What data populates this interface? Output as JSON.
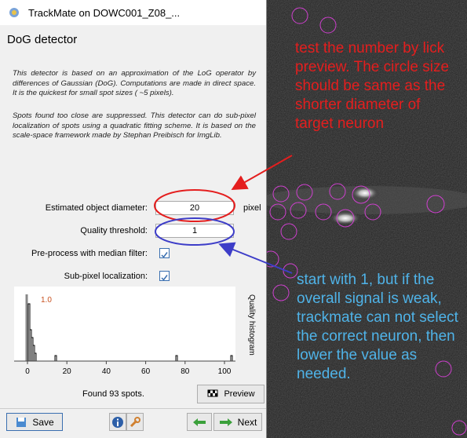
{
  "window": {
    "title": "TrackMate on DOWC001_Z08_..."
  },
  "panel": {
    "heading": "DoG detector",
    "description": [
      "This detector is based on an approximation of the LoG operator by differences of Gaussian (DoG). Computations are made in direct space. It is the quickest for small spot sizes ( ~5 pixels).",
      "Spots found too close are suppressed. This detector can do sub-pixel localization of spots using a quadratic fitting scheme. It is based on the scale-space framework made by Stephan Preibisch for ImgLib."
    ]
  },
  "fields": [
    {
      "label": "Estimated object diameter:",
      "value": "20",
      "unit": "pixel"
    },
    {
      "label": "Quality threshold:",
      "value": "1"
    },
    {
      "label": "Pre-process with median filter:"
    },
    {
      "label": "Sub-pixel localization:"
    }
  ],
  "histogram": {
    "title": "Quality histogram",
    "threshold_label": "1.0",
    "xticks": [
      0,
      20,
      40,
      60,
      80,
      100
    ]
  },
  "status": "Found 93 spots.",
  "buttons": {
    "preview": "Preview",
    "save": "Save",
    "next": "Next"
  },
  "annotations": [
    "test the number by lick preview. The circle size should be same as the shorter diameter of target neuron",
    "start with 1, but if the overall signal is weak, trackmate can not select the correct neuron, then lower the value as needed."
  ]
}
